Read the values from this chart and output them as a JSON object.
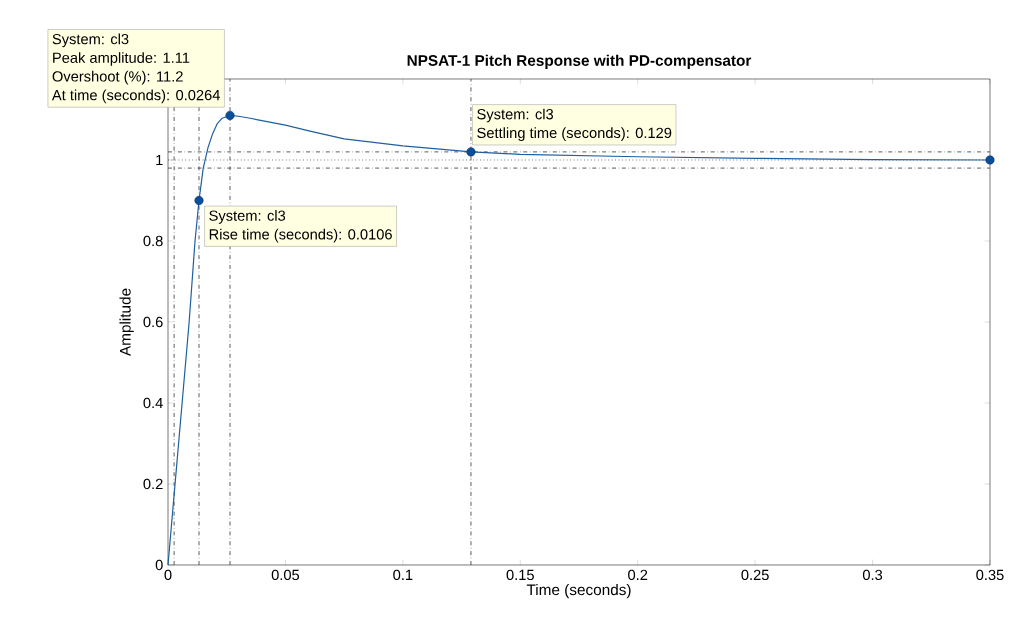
{
  "chart_data": {
    "type": "line",
    "title": "NPSAT-1 Pitch Response with PD-compensator",
    "xlabel": "Time (seconds)",
    "ylabel": "Amplitude",
    "xlim": [
      0,
      0.35
    ],
    "xticks": [
      0,
      0.05,
      0.1,
      0.15,
      0.2,
      0.25,
      0.3,
      0.35
    ],
    "ylim": [
      0,
      1.2
    ],
    "yticks": [
      0,
      0.2,
      0.4,
      0.6,
      0.8,
      1
    ],
    "series": [
      {
        "color": "#1f5f9f",
        "marker": "none",
        "x": [
          0,
          0.003,
          0.006,
          0.009,
          0.0115,
          0.0132,
          0.015,
          0.017,
          0.019,
          0.021,
          0.023,
          0.0264,
          0.03,
          0.035,
          0.04,
          0.05,
          0.06,
          0.075,
          0.1,
          0.129,
          0.15,
          0.2,
          0.25,
          0.3,
          0.35
        ],
        "values": [
          0,
          0.2,
          0.4,
          0.6,
          0.8,
          0.9,
          0.98,
          1.03,
          1.065,
          1.09,
          1.103,
          1.11,
          1.108,
          1.103,
          1.097,
          1.086,
          1.072,
          1.052,
          1.035,
          1.02,
          1.014,
          1.008,
          1.004,
          1.001,
          1.0
        ]
      },
      {
        "type": "scatter",
        "color": "#0b4f9c",
        "marker": "circle",
        "x": [
          0.0132,
          0.0264,
          0.129,
          0.35
        ],
        "values": [
          0.9,
          1.11,
          1.02,
          1.0
        ]
      }
    ],
    "ref_lines": [
      {
        "axis": "y",
        "value": 1.02,
        "color": "#333333",
        "line_style": "dashdot"
      },
      {
        "axis": "y",
        "value": 0.98,
        "color": "#333333",
        "line_style": "dashdot"
      },
      {
        "axis": "y",
        "value": 1,
        "color": "#333333",
        "line_style": "dotted"
      },
      {
        "axis": "x",
        "value": 0.0026,
        "color": "#333333",
        "line_style": "dashdot"
      },
      {
        "axis": "x",
        "value": 0.0132,
        "color": "#333333",
        "line_style": "dashdot"
      },
      {
        "axis": "x",
        "value": 0.0264,
        "color": "#333333",
        "line_style": "dashdot"
      },
      {
        "axis": "x",
        "value": 0.129,
        "color": "#333333",
        "line_style": "dashdot"
      }
    ],
    "annotations": [
      "System: cl3",
      "Peak amplitude: 1.11",
      "Overshoot (%): 11.2",
      {
        "text": "At time (seconds): 0.0264",
        "x": 0.0264,
        "y": 1.11
      },
      "System: cl3",
      {
        "text": "Settling time (seconds): 0.129",
        "x": 0.129,
        "y": 1.02
      },
      "System: cl3",
      {
        "text": "Rise time (seconds): 0.0106",
        "x": 0.0132,
        "y": 0.9
      }
    ]
  }
}
